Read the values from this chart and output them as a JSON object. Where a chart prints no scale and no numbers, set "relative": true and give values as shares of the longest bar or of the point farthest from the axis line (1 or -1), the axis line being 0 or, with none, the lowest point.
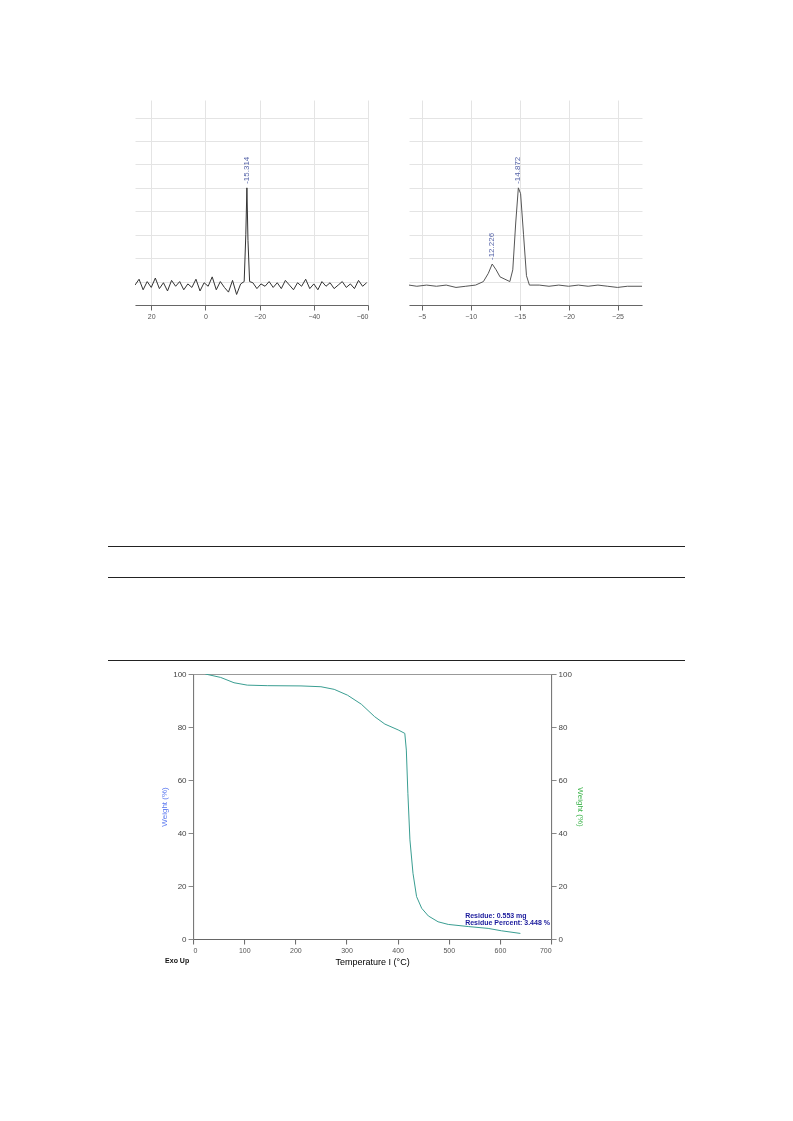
{
  "chart_data": [
    {
      "type": "line",
      "relative": true,
      "xlim": [
        26,
        -60
      ],
      "xticks": [
        20,
        0,
        -20,
        -40,
        -60
      ],
      "grid": true,
      "line_style": "solid",
      "x": [
        26,
        24.5,
        23,
        21.5,
        20,
        18.5,
        17,
        15.5,
        14,
        12.5,
        11,
        9.5,
        8,
        6.5,
        5,
        3.5,
        2,
        0.5,
        -1,
        -2.5,
        -4,
        -5.5,
        -7,
        -8.5,
        -10,
        -11.5,
        -13,
        -14.3,
        -14.9,
        -15.3,
        -15.7,
        -16.3,
        -17.5,
        -19,
        -20.5,
        -22,
        -23.5,
        -25,
        -26.5,
        -28,
        -29.5,
        -31,
        -32.5,
        -34,
        -35.5,
        -37,
        -38.5,
        -40,
        -41.5,
        -43,
        -44.5,
        -46,
        -47.5,
        -49,
        -50.5,
        -52,
        -53.5,
        -55,
        -56.5,
        -58,
        -59.5
      ],
      "series": [
        {
          "color": "#333333",
          "values": [
            0.17,
            0.22,
            0.13,
            0.2,
            0.15,
            0.23,
            0.14,
            0.19,
            0.12,
            0.21,
            0.16,
            0.2,
            0.13,
            0.18,
            0.15,
            0.22,
            0.12,
            0.19,
            0.16,
            0.24,
            0.13,
            0.2,
            0.15,
            0.11,
            0.21,
            0.09,
            0.18,
            0.2,
            0.6,
            1,
            0.55,
            0.2,
            0.19,
            0.14,
            0.18,
            0.16,
            0.2,
            0.15,
            0.19,
            0.14,
            0.21,
            0.17,
            0.13,
            0.19,
            0.16,
            0.22,
            0.14,
            0.18,
            0.13,
            0.2,
            0.16,
            0.19,
            0.14,
            0.17,
            0.2,
            0.15,
            0.18,
            0.14,
            0.21,
            0.16,
            0.19
          ]
        }
      ],
      "annotations": [
        {
          "text": "-15.314",
          "x": -15.314,
          "y": 1
        }
      ]
    },
    {
      "type": "line",
      "relative": true,
      "xlim": [
        -3.7,
        -27.5
      ],
      "xticks": [
        -5,
        -10,
        -15,
        -20,
        -25
      ],
      "grid": true,
      "line_style": "solid",
      "x": [
        -3.7,
        -4.5,
        -5.5,
        -6.5,
        -7.5,
        -8.5,
        -9.5,
        -10.5,
        -11.3,
        -11.8,
        -12.2,
        -12.6,
        -13,
        -13.5,
        -14,
        -14.3,
        -14.6,
        -14.87,
        -15.1,
        -15.4,
        -15.7,
        -16,
        -17,
        -18,
        -19,
        -20,
        -21,
        -22,
        -23,
        -24,
        -25,
        -26,
        -27.5
      ],
      "series": [
        {
          "color": "#555555",
          "values": [
            0.17,
            0.16,
            0.17,
            0.16,
            0.17,
            0.15,
            0.16,
            0.17,
            0.2,
            0.27,
            0.35,
            0.3,
            0.24,
            0.22,
            0.2,
            0.3,
            0.7,
            1,
            0.95,
            0.6,
            0.25,
            0.17,
            0.17,
            0.16,
            0.17,
            0.16,
            0.17,
            0.16,
            0.17,
            0.16,
            0.15,
            0.16,
            0.16
          ]
        }
      ],
      "annotations": [
        {
          "text": "-12.226",
          "x": -12.226,
          "y": 0.35
        },
        {
          "text": "-14.872",
          "x": -14.872,
          "y": 1
        }
      ]
    },
    {
      "type": "line",
      "xlabel": "Temperature I (°C)",
      "ylabel": "Weight (%)",
      "y2label": "Weight (%)",
      "xlim": [
        0,
        700
      ],
      "xticks": [
        0,
        100,
        200,
        300,
        400,
        500,
        600,
        700
      ],
      "ylim": [
        0,
        100
      ],
      "yticks": [
        0,
        20,
        40,
        60,
        80,
        100
      ],
      "y2lim": [
        0,
        100
      ],
      "y2ticks": [
        0,
        20,
        40,
        60,
        80,
        100
      ],
      "grid": false,
      "line_style": "solid",
      "x": [
        24,
        54,
        80,
        106,
        145,
        211,
        250,
        276,
        302,
        329,
        355,
        375,
        401,
        414,
        417,
        420,
        424,
        430,
        437,
        447,
        460,
        479,
        499,
        538,
        577,
        603,
        640
      ],
      "series": [
        {
          "color": "#3a9e92",
          "values": [
            100,
            98.7,
            96.7,
            95.8,
            95.6,
            95.5,
            95.2,
            94.2,
            92,
            88.6,
            83.9,
            81.1,
            78.9,
            77.6,
            71.3,
            55,
            37.4,
            24.8,
            16,
            11.6,
            8.7,
            6.5,
            5.5,
            4.7,
            4,
            3.1,
            2.1
          ]
        }
      ],
      "annotations": [
        "Residue: 0.553 mg",
        "Residue Percent: 3.448 %",
        "Exo Up"
      ]
    }
  ]
}
